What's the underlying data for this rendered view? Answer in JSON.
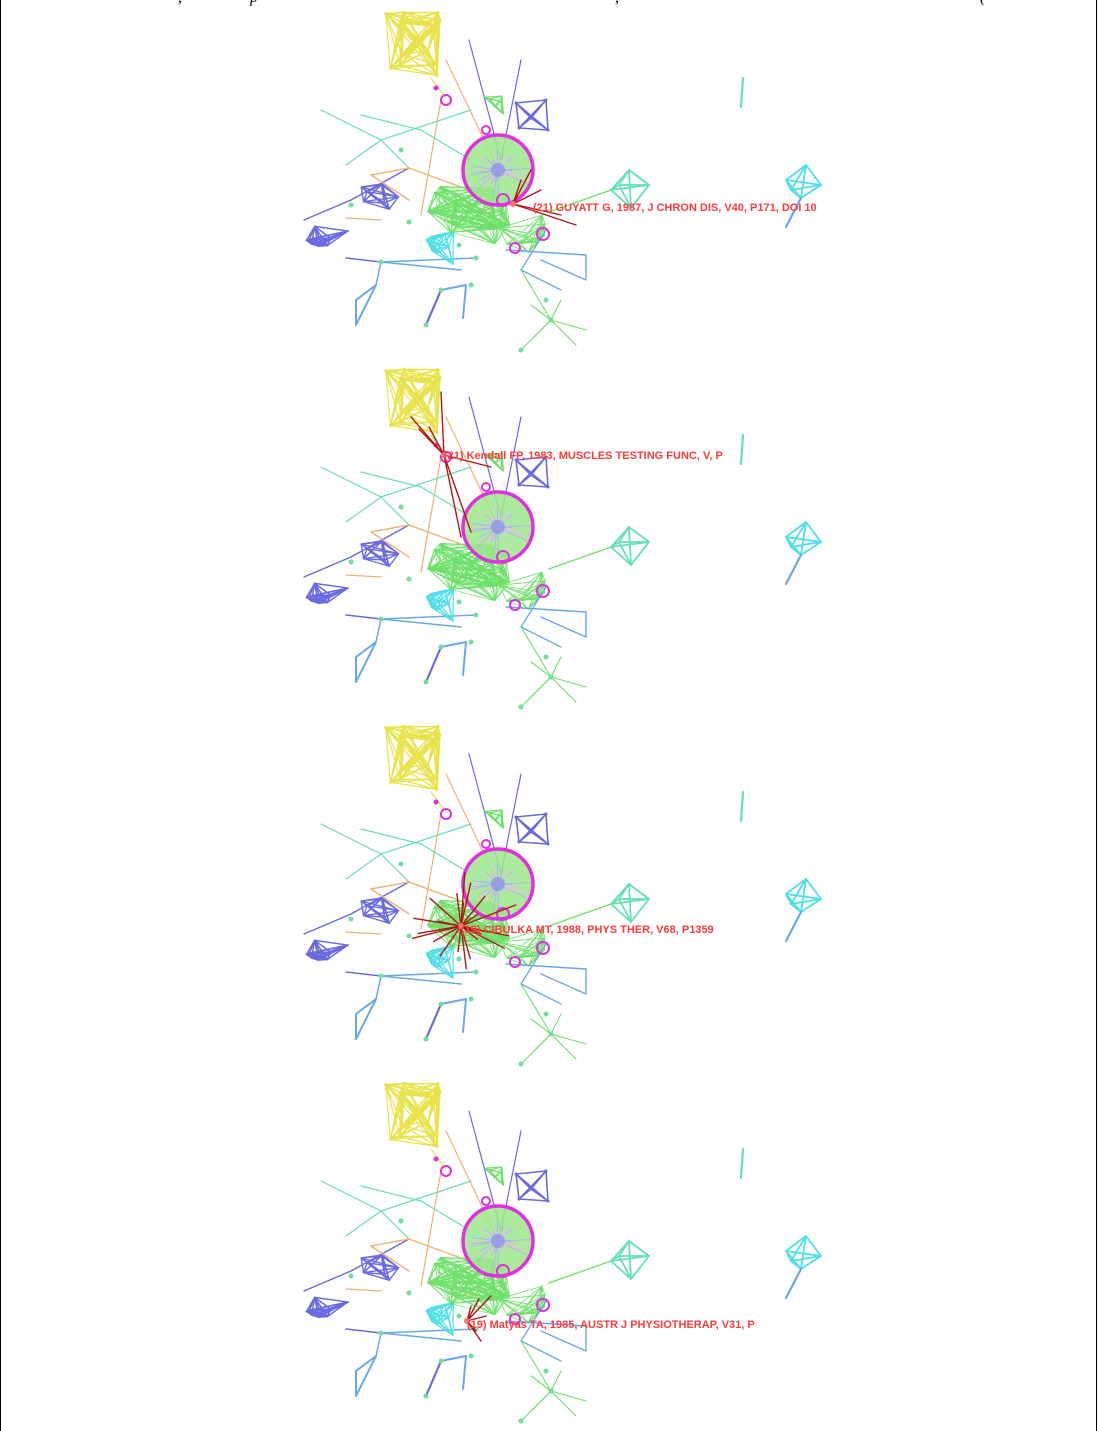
{
  "header_fragments": [
    ", ",
    "p",
    ", ",
    "("
  ],
  "panels": [
    {
      "label": "(21) GUYATT G, 1987, J CHRON DIS, V40, P171, DOI 10",
      "highlight_node": "guyatt"
    },
    {
      "label": "(21) Kendall FP, 1983, MUSCLES TESTING FUNC, V, P",
      "highlight_node": "kendall"
    },
    {
      "label": "(19) CIBULKA MT, 1988, PHYS THER, V68, P1359",
      "highlight_node": "cibulka"
    },
    {
      "label": "(19) Matyas TA, 1985, AUSTR J PHYSIOTHERAP, V31, P",
      "highlight_node": "matyas"
    }
  ],
  "colors": {
    "yellow": "#e8e34a",
    "blue": "#6a6ae0",
    "teal": "#66e0b8",
    "cyan": "#4ee0e8",
    "green": "#6ee06a",
    "orange": "#f2b070",
    "lightblue": "#6aa8e8",
    "magenta": "#e030e0",
    "highlight": "#b01818",
    "label": "#ff3b3b"
  }
}
